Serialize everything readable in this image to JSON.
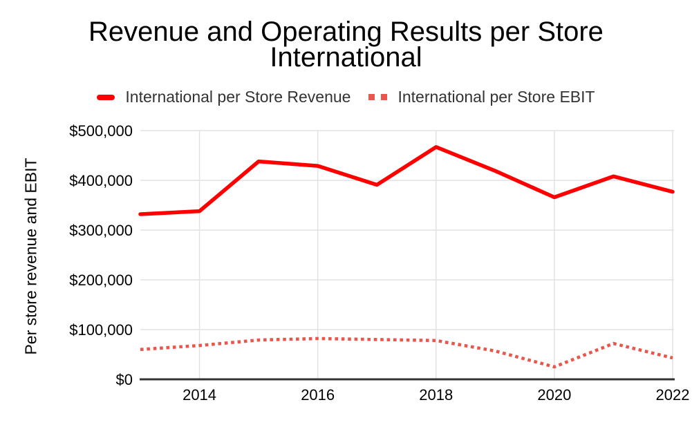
{
  "title": {
    "line1": "Revenue and Operating Results per Store",
    "line2": "International"
  },
  "y_axis_title": "Per store revenue and EBIT",
  "legend": [
    {
      "label": "International per Store Revenue",
      "color": "#ff0000",
      "style": "solid"
    },
    {
      "label": "International per Store EBIT",
      "color": "#e8564c",
      "style": "dotted"
    }
  ],
  "colors": {
    "background": "#ffffff",
    "gridline": "#e2e2e2",
    "axis_line": "#333333",
    "tick_text": "#000000",
    "legend_text": "#333333",
    "title_text": "#000000"
  },
  "chart_data": {
    "type": "line",
    "title": "Revenue and Operating Results per Store International",
    "x": [
      2013,
      2014,
      2015,
      2016,
      2017,
      2018,
      2019,
      2020,
      2021,
      2022
    ],
    "series": [
      {
        "name": "International per Store Revenue",
        "style": "solid",
        "color": "#ff0000",
        "values": [
          332000,
          338000,
          438000,
          429000,
          391000,
          467000,
          419000,
          366000,
          408000,
          377000
        ]
      },
      {
        "name": "International per Store EBIT",
        "style": "dotted",
        "color": "#e8564c",
        "values": [
          60000,
          68000,
          79000,
          82000,
          80000,
          78000,
          57000,
          25000,
          72000,
          43000
        ]
      }
    ],
    "xlabel": "",
    "ylabel": "Per store revenue and EBIT",
    "xlim": [
      2013,
      2022
    ],
    "ylim": [
      0,
      500000
    ],
    "x_ticks": [
      {
        "value": 2014,
        "label": "2014"
      },
      {
        "value": 2016,
        "label": "2016"
      },
      {
        "value": 2018,
        "label": "2018"
      },
      {
        "value": 2020,
        "label": "2020"
      },
      {
        "value": 2022,
        "label": "2022"
      }
    ],
    "y_ticks": [
      {
        "value": 0,
        "label": "$0"
      },
      {
        "value": 100000,
        "label": "$100,000"
      },
      {
        "value": 200000,
        "label": "$200,000"
      },
      {
        "value": 300000,
        "label": "$300,000"
      },
      {
        "value": 400000,
        "label": "$400,000"
      },
      {
        "value": 500000,
        "label": "$500,000"
      }
    ],
    "grid": true,
    "legend_position": "top"
  }
}
